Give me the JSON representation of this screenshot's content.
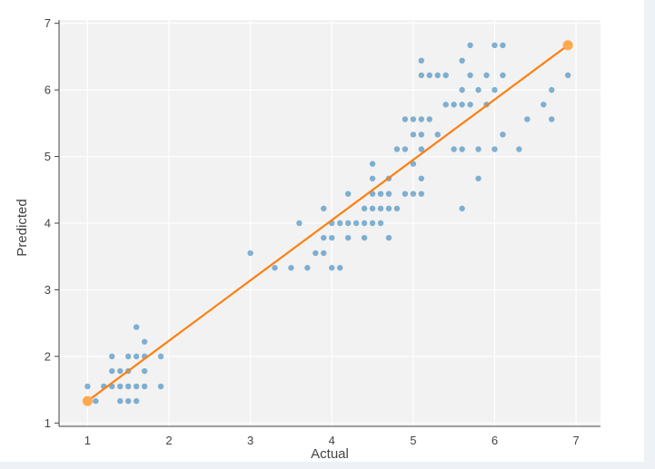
{
  "chart_data": {
    "type": "scatter",
    "xlabel": "Actual",
    "ylabel": "Predicted",
    "xlim": [
      0.65,
      7.3
    ],
    "ylim": [
      0.95,
      7.05
    ],
    "xticks": [
      1,
      2,
      3,
      4,
      5,
      6,
      7
    ],
    "yticks": [
      1,
      2,
      3,
      4,
      5,
      6,
      7
    ],
    "grid": true,
    "colors": {
      "plot_bg": "#f2f2f2",
      "grid": "#ffffff",
      "points": "#1f77b4",
      "line": "#ff7f0e",
      "line_end": "#ffa94d"
    },
    "series": [
      {
        "type": "scatter",
        "points": [
          [
            1.0,
            1.55
          ],
          [
            1.1,
            1.33
          ],
          [
            1.2,
            1.55
          ],
          [
            1.3,
            1.55
          ],
          [
            1.3,
            1.78
          ],
          [
            1.3,
            2.0
          ],
          [
            1.4,
            1.55
          ],
          [
            1.4,
            1.78
          ],
          [
            1.4,
            1.33
          ],
          [
            1.5,
            1.55
          ],
          [
            1.5,
            1.78
          ],
          [
            1.5,
            2.0
          ],
          [
            1.5,
            1.33
          ],
          [
            1.6,
            1.55
          ],
          [
            1.6,
            2.0
          ],
          [
            1.6,
            2.44
          ],
          [
            1.6,
            1.33
          ],
          [
            1.7,
            1.55
          ],
          [
            1.7,
            1.78
          ],
          [
            1.7,
            2.0
          ],
          [
            1.7,
            2.22
          ],
          [
            1.9,
            2.0
          ],
          [
            1.9,
            1.55
          ],
          [
            3.0,
            3.55
          ],
          [
            3.3,
            3.33
          ],
          [
            3.5,
            3.33
          ],
          [
            3.6,
            4.0
          ],
          [
            3.7,
            3.33
          ],
          [
            3.8,
            3.55
          ],
          [
            3.9,
            3.55
          ],
          [
            3.9,
            3.78
          ],
          [
            3.9,
            4.22
          ],
          [
            4.0,
            3.78
          ],
          [
            4.0,
            4.0
          ],
          [
            4.0,
            3.33
          ],
          [
            4.1,
            3.33
          ],
          [
            4.1,
            4.0
          ],
          [
            4.2,
            3.78
          ],
          [
            4.2,
            4.0
          ],
          [
            4.2,
            4.44
          ],
          [
            4.3,
            4.0
          ],
          [
            4.4,
            3.78
          ],
          [
            4.4,
            4.0
          ],
          [
            4.4,
            4.22
          ],
          [
            4.5,
            4.0
          ],
          [
            4.5,
            4.22
          ],
          [
            4.5,
            4.44
          ],
          [
            4.5,
            4.67
          ],
          [
            4.5,
            4.89
          ],
          [
            4.6,
            4.0
          ],
          [
            4.6,
            4.22
          ],
          [
            4.6,
            4.44
          ],
          [
            4.7,
            3.78
          ],
          [
            4.7,
            4.22
          ],
          [
            4.7,
            4.44
          ],
          [
            4.7,
            4.67
          ],
          [
            4.8,
            4.22
          ],
          [
            4.8,
            5.11
          ],
          [
            4.9,
            4.44
          ],
          [
            4.9,
            5.11
          ],
          [
            4.9,
            5.56
          ],
          [
            5.0,
            4.44
          ],
          [
            5.0,
            4.89
          ],
          [
            5.0,
            5.33
          ],
          [
            5.0,
            5.56
          ],
          [
            5.1,
            4.44
          ],
          [
            5.1,
            4.67
          ],
          [
            5.1,
            5.11
          ],
          [
            5.1,
            5.33
          ],
          [
            5.1,
            5.56
          ],
          [
            5.1,
            6.22
          ],
          [
            5.1,
            6.44
          ],
          [
            5.2,
            5.56
          ],
          [
            5.2,
            6.22
          ],
          [
            5.3,
            5.33
          ],
          [
            5.3,
            6.22
          ],
          [
            5.4,
            5.78
          ],
          [
            5.4,
            6.22
          ],
          [
            5.5,
            5.11
          ],
          [
            5.5,
            5.78
          ],
          [
            5.6,
            4.22
          ],
          [
            5.6,
            5.11
          ],
          [
            5.6,
            5.78
          ],
          [
            5.6,
            6.0
          ],
          [
            5.6,
            6.44
          ],
          [
            5.7,
            5.78
          ],
          [
            5.7,
            6.22
          ],
          [
            5.7,
            6.67
          ],
          [
            5.8,
            4.67
          ],
          [
            5.8,
            5.11
          ],
          [
            5.8,
            6.0
          ],
          [
            5.9,
            5.78
          ],
          [
            5.9,
            6.22
          ],
          [
            6.0,
            5.11
          ],
          [
            6.0,
            6.0
          ],
          [
            6.0,
            6.67
          ],
          [
            6.1,
            5.33
          ],
          [
            6.1,
            6.22
          ],
          [
            6.1,
            6.67
          ],
          [
            6.3,
            5.11
          ],
          [
            6.4,
            5.56
          ],
          [
            6.6,
            5.78
          ],
          [
            6.7,
            5.56
          ],
          [
            6.7,
            6.0
          ],
          [
            6.9,
            6.22
          ]
        ]
      },
      {
        "type": "line",
        "points": [
          [
            1.0,
            1.33
          ],
          [
            6.9,
            6.67
          ]
        ]
      }
    ]
  }
}
